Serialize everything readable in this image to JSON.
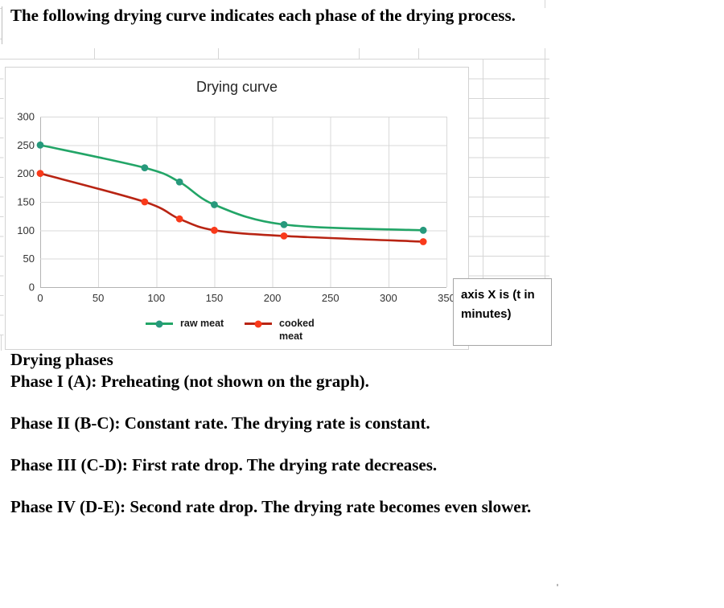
{
  "heading": {
    "text": "The following drying curve indicates each phase of the drying process."
  },
  "chart_data": {
    "type": "line",
    "title": "Drying curve",
    "x": [
      0,
      90,
      120,
      150,
      210,
      330
    ],
    "series": [
      {
        "name": "raw meat",
        "values": [
          250,
          210,
          185,
          145,
          110,
          100
        ],
        "line_color": "#22a567",
        "marker_color": "#27997c"
      },
      {
        "name": "cooked meat",
        "values": [
          200,
          150,
          120,
          100,
          90,
          80
        ],
        "line_color": "#b82413",
        "marker_color": "#f93a1b"
      }
    ],
    "xlim": [
      0,
      350
    ],
    "ylim": [
      0,
      300
    ],
    "x_ticks": [
      0,
      50,
      100,
      150,
      200,
      250,
      300,
      350
    ],
    "y_ticks": [
      0,
      50,
      100,
      150,
      200,
      250,
      300
    ],
    "grid": true,
    "legend_position": "bottom",
    "axis_note": "axis X is (t in minutes)"
  },
  "phases": {
    "heading": "Drying phases",
    "lines": [
      "Phase I (A): Preheating (not shown on the graph).",
      "Phase II (B-C): Constant rate. The drying rate is constant.",
      "Phase III (C-D): First rate drop. The drying rate decreases.",
      "Phase IV (D-E): Second rate drop. The drying rate becomes even slower."
    ]
  }
}
